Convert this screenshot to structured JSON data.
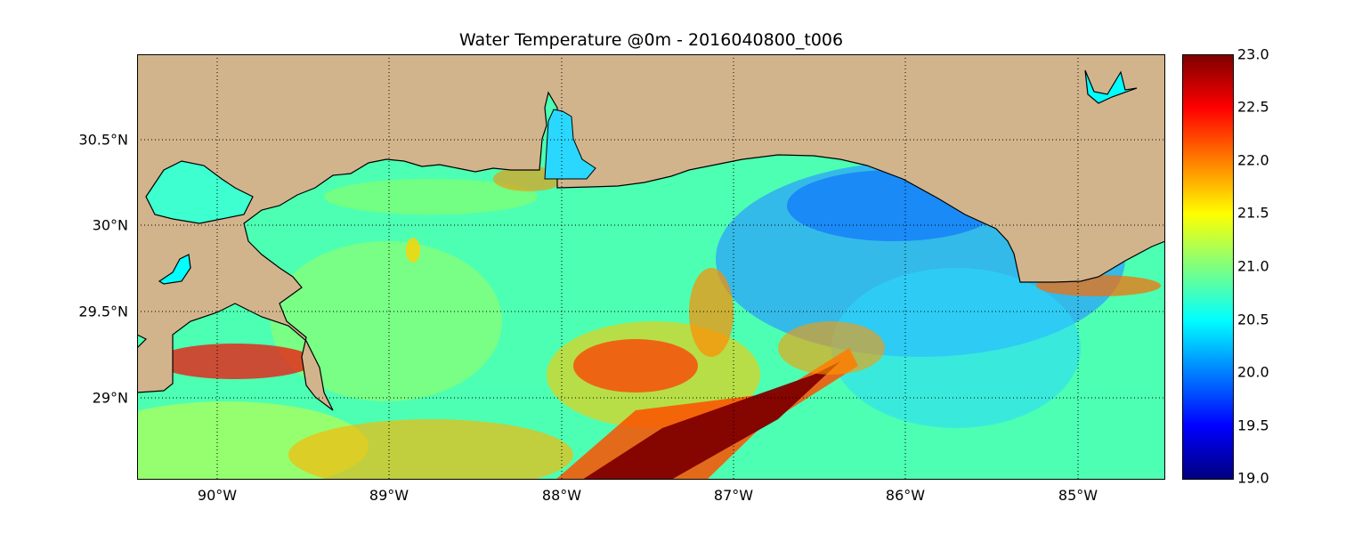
{
  "title": "Water Temperature @0m - 2016040800_t006",
  "map": {
    "lon_range": [
      -90.5,
      -84.5
    ],
    "lat_range": [
      28.55,
      31.0
    ],
    "y_ticks": [
      "30.5°N",
      "30°N",
      "29.5°N",
      "29°N"
    ],
    "y_tick_values": [
      30.5,
      30.0,
      29.5,
      29.0
    ],
    "x_ticks": [
      "90°W",
      "89°W",
      "88°W",
      "87°W",
      "86°W",
      "85°W"
    ],
    "x_tick_values": [
      -90,
      -89,
      -88,
      -87,
      -86,
      -85
    ],
    "land_color": "#d2b48c",
    "gridlines": "dotted"
  },
  "colorbar": {
    "ticks": [
      "23.0",
      "22.5",
      "22.0",
      "21.5",
      "21.0",
      "20.5",
      "20.0",
      "19.5",
      "19.0"
    ],
    "range": [
      19.0,
      23.0
    ],
    "colormap": "jet"
  }
}
